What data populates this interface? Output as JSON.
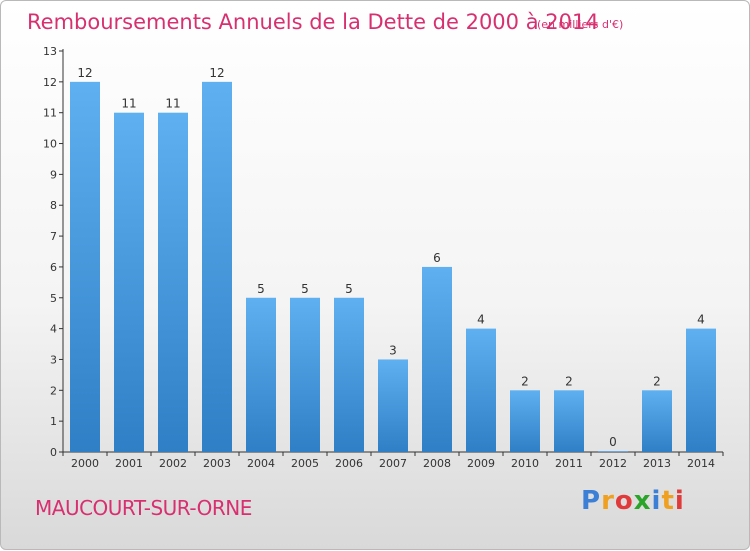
{
  "chart_data": {
    "type": "bar",
    "title": "Remboursements Annuels de la Dette de 2000 à 2014",
    "subtitle": "(en milliers d'€)",
    "categories": [
      "2000",
      "2001",
      "2002",
      "2003",
      "2004",
      "2005",
      "2006",
      "2007",
      "2008",
      "2009",
      "2010",
      "2011",
      "2012",
      "2013",
      "2014"
    ],
    "values": [
      12,
      11,
      11,
      12,
      5,
      5,
      5,
      3,
      6,
      4,
      2,
      2,
      0,
      2,
      4
    ],
    "ylim": [
      0,
      13
    ],
    "yticks": [
      0,
      1,
      2,
      3,
      4,
      5,
      6,
      7,
      8,
      9,
      10,
      11,
      12,
      13
    ],
    "grid": false,
    "bar_color": "#4a9be0"
  },
  "footer": {
    "commune": "MAUCOURT-SUR-ORNE",
    "logo_letters": [
      "P",
      "r",
      "o",
      "x",
      "i",
      "t",
      "i"
    ],
    "logo_colors": [
      "#3b7fd6",
      "#f0a020",
      "#e03a3a",
      "#2aa52a",
      "#3b7fd6",
      "#f0a020",
      "#e03a3a"
    ]
  }
}
